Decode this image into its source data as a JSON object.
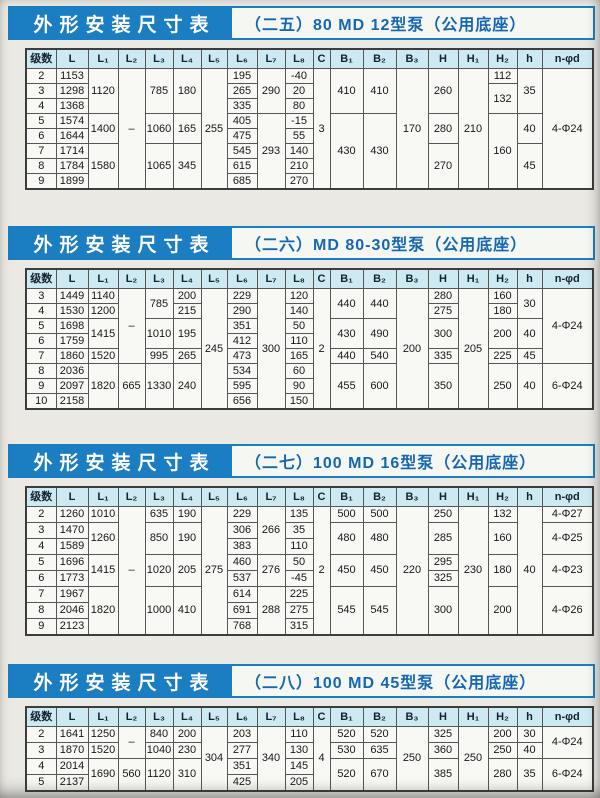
{
  "banner": {
    "label": "外形安装尺寸表"
  },
  "colors": {
    "banner_blue": "#1b7dc2",
    "title_text_blue": "#1566b3",
    "header_row_bg": "#cdeaf2",
    "page_bg": "#eae9e3",
    "table_border": "#565656"
  },
  "columns": [
    "级数",
    "L",
    "L₁",
    "L₂",
    "L₃",
    "L₄",
    "L₅",
    "L₆",
    "L₇",
    "L₈",
    "C",
    "B₁",
    "B₂",
    "B₃",
    "H",
    "H₁",
    "H₂",
    "h",
    "n-φd"
  ],
  "tables": [
    {
      "title": "（二五）80 MD 12型泵（公用底座）",
      "rows": [
        [
          {
            "v": "2"
          },
          {
            "v": "1153"
          },
          {
            "v": "1120",
            "rs": 3
          },
          {
            "v": "–",
            "rs": 8
          },
          {
            "v": "785",
            "rs": 3
          },
          {
            "v": "180",
            "rs": 3
          },
          {
            "v": "255",
            "rs": 8
          },
          {
            "v": "195"
          },
          {
            "v": "290",
            "rs": 3
          },
          {
            "v": "-40"
          },
          {
            "v": "3",
            "rs": 8
          },
          {
            "v": "410",
            "rs": 3
          },
          {
            "v": "410",
            "rs": 3
          },
          {
            "v": "170",
            "rs": 8
          },
          {
            "v": "260",
            "rs": 3
          },
          {
            "v": "210",
            "rs": 8
          },
          {
            "v": "112"
          },
          {
            "v": "35",
            "rs": 3
          },
          {
            "v": "4-Φ24",
            "rs": 8
          }
        ],
        [
          {
            "v": "3"
          },
          {
            "v": "1298"
          },
          {
            "v": "265"
          },
          {
            "v": "20"
          },
          {
            "v": "132",
            "rs": 2
          }
        ],
        [
          {
            "v": "4"
          },
          {
            "v": "1368"
          },
          {
            "v": "335"
          },
          {
            "v": "80"
          }
        ],
        [
          {
            "v": "5"
          },
          {
            "v": "1574"
          },
          {
            "v": "1400",
            "rs": 2
          },
          {
            "v": "1060",
            "rs": 2
          },
          {
            "v": "165",
            "rs": 2
          },
          {
            "v": "405"
          },
          {
            "v": "293",
            "rs": 5
          },
          {
            "v": "-15"
          },
          {
            "v": "430",
            "rs": 5
          },
          {
            "v": "430",
            "rs": 5
          },
          {
            "v": "280",
            "rs": 2
          },
          {
            "v": "160",
            "rs": 5
          },
          {
            "v": "40",
            "rs": 2
          }
        ],
        [
          {
            "v": "6"
          },
          {
            "v": "1644"
          },
          {
            "v": "475"
          },
          {
            "v": "55"
          }
        ],
        [
          {
            "v": "7"
          },
          {
            "v": "1714"
          },
          {
            "v": "1580",
            "rs": 3
          },
          {
            "v": "1065",
            "rs": 3
          },
          {
            "v": "345",
            "rs": 3
          },
          {
            "v": "545"
          },
          {
            "v": "140"
          },
          {
            "v": "270",
            "rs": 3
          },
          {
            "v": "45",
            "rs": 3
          }
        ],
        [
          {
            "v": "8"
          },
          {
            "v": "1784"
          },
          {
            "v": "615"
          },
          {
            "v": "210"
          }
        ],
        [
          {
            "v": "9"
          },
          {
            "v": "1899"
          },
          {
            "v": "685"
          },
          {
            "v": "270"
          }
        ]
      ]
    },
    {
      "title": "（二六）MD 80-30型泵（公用底座）",
      "rows": [
        [
          {
            "v": "3"
          },
          {
            "v": "1449"
          },
          {
            "v": "1140"
          },
          {
            "v": "–",
            "rs": 5
          },
          {
            "v": "785",
            "rs": 2
          },
          {
            "v": "200"
          },
          {
            "v": "245",
            "rs": 8
          },
          {
            "v": "229"
          },
          {
            "v": "300",
            "rs": 8
          },
          {
            "v": "120"
          },
          {
            "v": "2",
            "rs": 8
          },
          {
            "v": "440",
            "rs": 2
          },
          {
            "v": "440",
            "rs": 2
          },
          {
            "v": "200",
            "rs": 8
          },
          {
            "v": "280"
          },
          {
            "v": "205",
            "rs": 8
          },
          {
            "v": "160"
          },
          {
            "v": "30",
            "rs": 2
          },
          {
            "v": "4-Φ24",
            "rs": 5
          }
        ],
        [
          {
            "v": "4"
          },
          {
            "v": "1530"
          },
          {
            "v": "1200"
          },
          {
            "v": "215"
          },
          {
            "v": "290"
          },
          {
            "v": "140"
          },
          {
            "v": "275"
          },
          {
            "v": "180"
          }
        ],
        [
          {
            "v": "5"
          },
          {
            "v": "1698"
          },
          {
            "v": "1415",
            "rs": 2
          },
          {
            "v": "1010",
            "rs": 2
          },
          {
            "v": "195",
            "rs": 2
          },
          {
            "v": "351"
          },
          {
            "v": "50"
          },
          {
            "v": "430",
            "rs": 2
          },
          {
            "v": "490",
            "rs": 2
          },
          {
            "v": "300",
            "rs": 2
          },
          {
            "v": "200",
            "rs": 2
          },
          {
            "v": "40",
            "rs": 2
          }
        ],
        [
          {
            "v": "6"
          },
          {
            "v": "1759"
          },
          {
            "v": "412"
          },
          {
            "v": "110"
          }
        ],
        [
          {
            "v": "7"
          },
          {
            "v": "1860"
          },
          {
            "v": "1520"
          },
          {
            "v": "995"
          },
          {
            "v": "265"
          },
          {
            "v": "473"
          },
          {
            "v": "165"
          },
          {
            "v": "440"
          },
          {
            "v": "540"
          },
          {
            "v": "335"
          },
          {
            "v": "225"
          },
          {
            "v": "45"
          }
        ],
        [
          {
            "v": "8"
          },
          {
            "v": "2036"
          },
          {
            "v": "1820",
            "rs": 3
          },
          {
            "v": "665",
            "rs": 3
          },
          {
            "v": "1330",
            "rs": 3
          },
          {
            "v": "240",
            "rs": 3
          },
          {
            "v": "534"
          },
          {
            "v": "60"
          },
          {
            "v": "455",
            "rs": 3
          },
          {
            "v": "600",
            "rs": 3
          },
          {
            "v": "350",
            "rs": 3
          },
          {
            "v": "250",
            "rs": 3
          },
          {
            "v": "40",
            "rs": 3
          },
          {
            "v": "6-Φ24",
            "rs": 3
          }
        ],
        [
          {
            "v": "9"
          },
          {
            "v": "2097"
          },
          {
            "v": "595"
          },
          {
            "v": "90"
          }
        ],
        [
          {
            "v": "10"
          },
          {
            "v": "2158"
          },
          {
            "v": "656"
          },
          {
            "v": "150"
          }
        ]
      ]
    },
    {
      "title": "（二七）100 MD 16型泵（公用底座）",
      "rows": [
        [
          {
            "v": "2"
          },
          {
            "v": "1260"
          },
          {
            "v": "1010"
          },
          {
            "v": "–",
            "rs": 8
          },
          {
            "v": "635"
          },
          {
            "v": "190"
          },
          {
            "v": "275",
            "rs": 8
          },
          {
            "v": "229"
          },
          {
            "v": "266",
            "rs": 3
          },
          {
            "v": "135"
          },
          {
            "v": "2",
            "rs": 8
          },
          {
            "v": "500"
          },
          {
            "v": "500"
          },
          {
            "v": "220",
            "rs": 8
          },
          {
            "v": "250"
          },
          {
            "v": "230",
            "rs": 8
          },
          {
            "v": "132"
          },
          {
            "v": "40",
            "rs": 8
          },
          {
            "v": "4-Φ27"
          }
        ],
        [
          {
            "v": "3"
          },
          {
            "v": "1470"
          },
          {
            "v": "1260",
            "rs": 2
          },
          {
            "v": "850",
            "rs": 2
          },
          {
            "v": "190",
            "rs": 2
          },
          {
            "v": "306"
          },
          {
            "v": "35"
          },
          {
            "v": "480",
            "rs": 2
          },
          {
            "v": "480",
            "rs": 2
          },
          {
            "v": "285",
            "rs": 2
          },
          {
            "v": "160",
            "rs": 2
          },
          {
            "v": "4-Φ25",
            "rs": 2
          }
        ],
        [
          {
            "v": "4"
          },
          {
            "v": "1589"
          },
          {
            "v": "383"
          },
          {
            "v": "110"
          }
        ],
        [
          {
            "v": "5"
          },
          {
            "v": "1696"
          },
          {
            "v": "1415",
            "rs": 2
          },
          {
            "v": "1020",
            "rs": 2
          },
          {
            "v": "205",
            "rs": 2
          },
          {
            "v": "460"
          },
          {
            "v": "276",
            "rs": 2
          },
          {
            "v": "50"
          },
          {
            "v": "450",
            "rs": 2
          },
          {
            "v": "450",
            "rs": 2
          },
          {
            "v": "295"
          },
          {
            "v": "180",
            "rs": 2
          },
          {
            "v": "4-Φ23",
            "rs": 2
          }
        ],
        [
          {
            "v": "6"
          },
          {
            "v": "1773"
          },
          {
            "v": "537"
          },
          {
            "v": "-45"
          },
          {
            "v": "325"
          }
        ],
        [
          {
            "v": "7"
          },
          {
            "v": "1967"
          },
          {
            "v": "1820",
            "rs": 3
          },
          {
            "v": "1000",
            "rs": 3
          },
          {
            "v": "410",
            "rs": 3
          },
          {
            "v": "614"
          },
          {
            "v": "288",
            "rs": 3
          },
          {
            "v": "225"
          },
          {
            "v": "545",
            "rs": 3
          },
          {
            "v": "545",
            "rs": 3
          },
          {
            "v": "300",
            "rs": 3
          },
          {
            "v": "200",
            "rs": 3
          },
          {
            "v": "4-Φ26",
            "rs": 3
          }
        ],
        [
          {
            "v": "8"
          },
          {
            "v": "2046"
          },
          {
            "v": "691"
          },
          {
            "v": "275"
          }
        ],
        [
          {
            "v": "9"
          },
          {
            "v": "2123"
          },
          {
            "v": "768"
          },
          {
            "v": "315"
          }
        ]
      ]
    },
    {
      "title": "（二八）100 MD 45型泵（公用底座）",
      "rows": [
        [
          {
            "v": "2"
          },
          {
            "v": "1641"
          },
          {
            "v": "1250"
          },
          {
            "v": "–",
            "rs": 2
          },
          {
            "v": "840"
          },
          {
            "v": "200"
          },
          {
            "v": "304",
            "rs": 4
          },
          {
            "v": "203"
          },
          {
            "v": "340",
            "rs": 4
          },
          {
            "v": "110"
          },
          {
            "v": "4",
            "rs": 4
          },
          {
            "v": "520"
          },
          {
            "v": "520"
          },
          {
            "v": "250",
            "rs": 4
          },
          {
            "v": "325"
          },
          {
            "v": "250",
            "rs": 4
          },
          {
            "v": "200"
          },
          {
            "v": "30"
          },
          {
            "v": "4-Φ24",
            "rs": 2
          }
        ],
        [
          {
            "v": "3"
          },
          {
            "v": "1870"
          },
          {
            "v": "1520"
          },
          {
            "v": "1040"
          },
          {
            "v": "230"
          },
          {
            "v": "277"
          },
          {
            "v": "130"
          },
          {
            "v": "530"
          },
          {
            "v": "635"
          },
          {
            "v": "360"
          },
          {
            "v": "250"
          },
          {
            "v": "40"
          }
        ],
        [
          {
            "v": "4"
          },
          {
            "v": "2014"
          },
          {
            "v": "1690",
            "rs": 2
          },
          {
            "v": "560",
            "rs": 2
          },
          {
            "v": "1120",
            "rs": 2
          },
          {
            "v": "310",
            "rs": 2
          },
          {
            "v": "351"
          },
          {
            "v": "145"
          },
          {
            "v": "520",
            "rs": 2
          },
          {
            "v": "670",
            "rs": 2
          },
          {
            "v": "385",
            "rs": 2
          },
          {
            "v": "280",
            "rs": 2
          },
          {
            "v": "35",
            "rs": 2
          },
          {
            "v": "6-Φ24",
            "rs": 2
          }
        ],
        [
          {
            "v": "5"
          },
          {
            "v": "2137"
          },
          {
            "v": "425"
          },
          {
            "v": "205"
          }
        ]
      ]
    }
  ]
}
